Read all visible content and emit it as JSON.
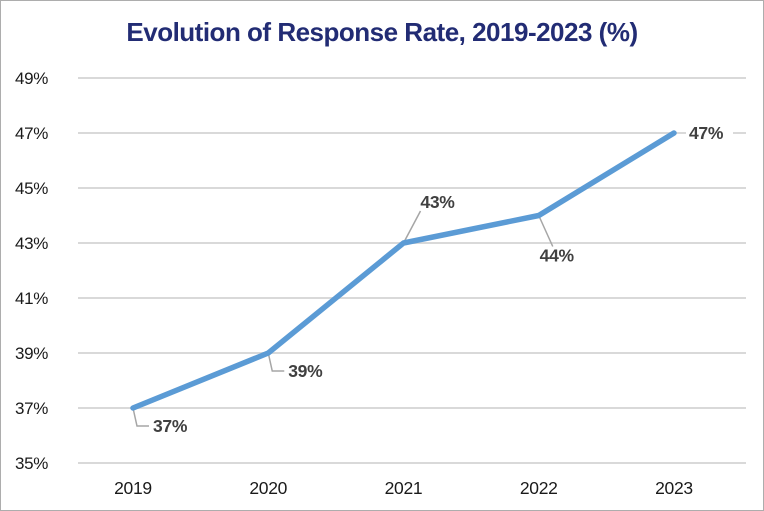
{
  "chart_data": {
    "type": "line",
    "title": "Evolution of Response Rate, 2019-2023 (%)",
    "categories": [
      "2019",
      "2020",
      "2021",
      "2022",
      "2023"
    ],
    "series": [
      {
        "name": "Response rate",
        "color": "#5b9bd5",
        "values": [
          37,
          39,
          43,
          44,
          47
        ]
      }
    ],
    "data_labels": [
      "37%",
      "39%",
      "43%",
      "44%",
      "47%"
    ],
    "y_ticks": [
      {
        "value": 49,
        "label": "49%"
      },
      {
        "value": 47,
        "label": "47%"
      },
      {
        "value": 45,
        "label": "45%"
      },
      {
        "value": 43,
        "label": "43%"
      },
      {
        "value": 41,
        "label": "41%"
      },
      {
        "value": 39,
        "label": "39%"
      },
      {
        "value": 37,
        "label": "37%"
      },
      {
        "value": 35,
        "label": "35%"
      }
    ],
    "ylim": [
      35,
      49
    ],
    "xlabel": "",
    "ylabel": "",
    "grid": true,
    "legend_position": "none",
    "colors": {
      "title": "#222c74",
      "axis_labels": "#1a1a1a",
      "data_labels": "#404040",
      "gridline": "#d9d9d9",
      "leader_line": "#a6a6a6",
      "background": "#ffffff",
      "frame_border": "#adadad"
    }
  }
}
